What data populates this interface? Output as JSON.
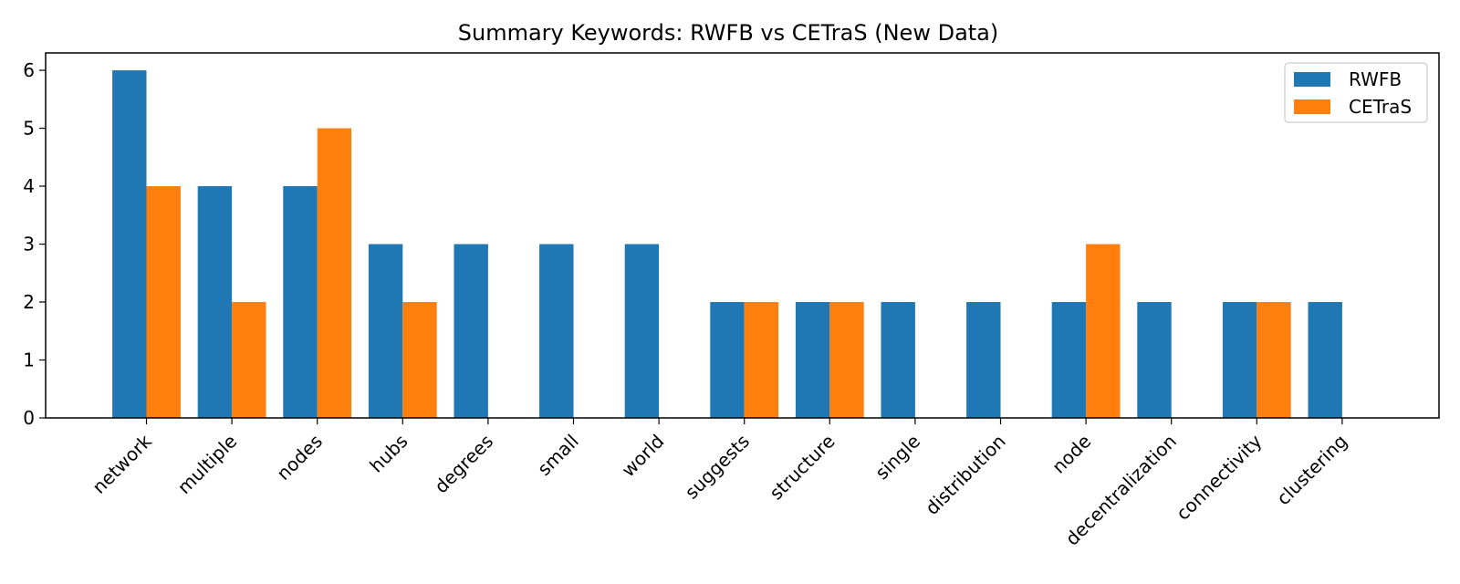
{
  "chart_data": {
    "type": "bar",
    "title": "Summary Keywords: RWFB vs CETraS (New Data)",
    "xlabel": "",
    "ylabel": "",
    "categories": [
      "network",
      "multiple",
      "nodes",
      "hubs",
      "degrees",
      "small",
      "world",
      "suggests",
      "structure",
      "single",
      "distribution",
      "node",
      "decentralization",
      "connectivity",
      "clustering"
    ],
    "series": [
      {
        "name": "RWFB",
        "color": "#1f77b4",
        "values": [
          6,
          4,
          4,
          3,
          3,
          3,
          3,
          2,
          2,
          2,
          2,
          2,
          2,
          2,
          2
        ]
      },
      {
        "name": "CETraS",
        "color": "#ff7f0e",
        "values": [
          4,
          2,
          5,
          2,
          0,
          0,
          0,
          2,
          2,
          0,
          0,
          3,
          0,
          2,
          0
        ]
      }
    ],
    "ylim": [
      0,
      6.3
    ],
    "yticks": [
      0,
      1,
      2,
      3,
      4,
      5,
      6
    ],
    "grid": false,
    "legend_position": "top-right"
  }
}
